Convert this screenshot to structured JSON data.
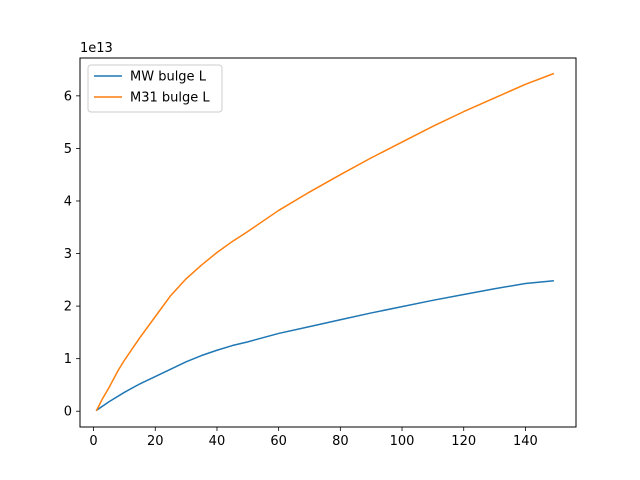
{
  "chart_data": {
    "type": "line",
    "title": "",
    "xlabel": "",
    "ylabel": "",
    "y_offset_label": "1e13",
    "y_scale": 10000000000000.0,
    "xlim": [
      -4.4,
      156.4
    ],
    "ylim": [
      -0.3,
      6.72
    ],
    "x_ticks": [
      0,
      20,
      40,
      60,
      80,
      100,
      120,
      140
    ],
    "y_ticks": [
      0,
      1,
      2,
      3,
      4,
      5,
      6
    ],
    "grid": false,
    "legend_position": "top-left",
    "series": [
      {
        "name": "MW bulge L",
        "color": "#1f77b4",
        "x": [
          1,
          5,
          10,
          15,
          20,
          25,
          30,
          35,
          40,
          45,
          50,
          60,
          70,
          80,
          90,
          100,
          110,
          120,
          130,
          140,
          149
        ],
        "y": [
          0.02,
          0.18,
          0.36,
          0.52,
          0.66,
          0.8,
          0.94,
          1.06,
          1.16,
          1.25,
          1.32,
          1.48,
          1.61,
          1.74,
          1.87,
          1.99,
          2.11,
          2.22,
          2.33,
          2.43,
          2.48
        ]
      },
      {
        "name": "M31 bulge L",
        "color": "#ff7f0e",
        "x": [
          1,
          3,
          5,
          8,
          10,
          15,
          20,
          25,
          30,
          35,
          40,
          45,
          50,
          60,
          70,
          80,
          90,
          100,
          110,
          120,
          130,
          140,
          149
        ],
        "y": [
          0.02,
          0.25,
          0.45,
          0.78,
          0.97,
          1.4,
          1.8,
          2.2,
          2.52,
          2.78,
          3.02,
          3.23,
          3.42,
          3.82,
          4.17,
          4.5,
          4.82,
          5.12,
          5.42,
          5.7,
          5.96,
          6.22,
          6.42
        ]
      }
    ]
  }
}
